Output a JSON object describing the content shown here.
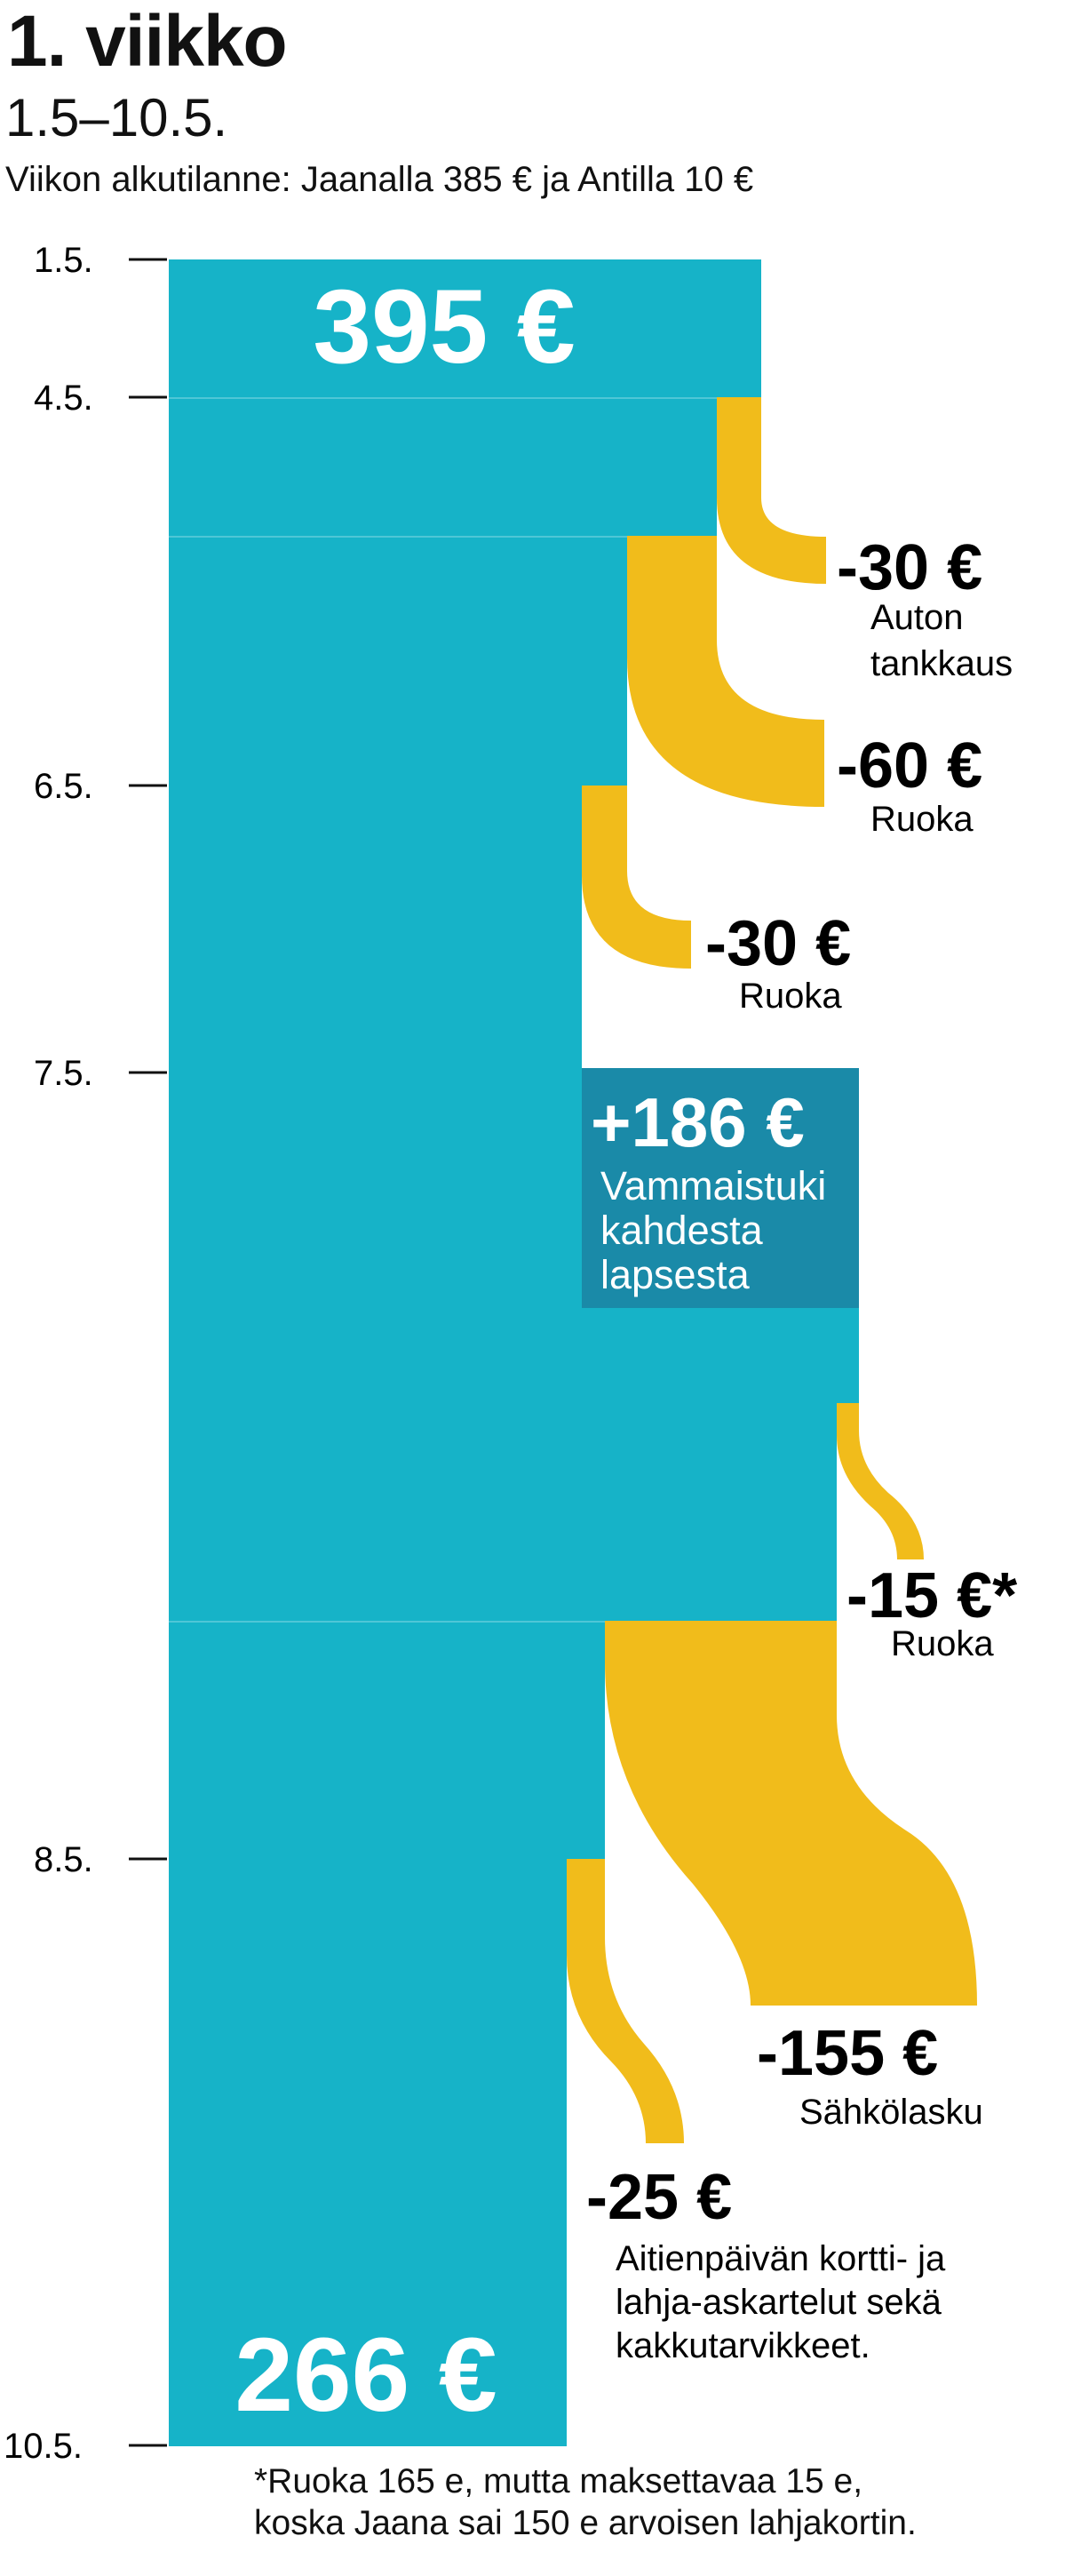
{
  "header": {
    "title": "1. viikko",
    "dates": "1.5–10.5.",
    "intro": "Viikon alkutilanne: Jaanalla 385 € ja Antilla 10 €"
  },
  "colors": {
    "balance": "#16b3c8",
    "income": "#1a8aa8",
    "expense": "#f1bc1b",
    "text": "#111111"
  },
  "axis": {
    "ticks": [
      "1.5.",
      "4.5.",
      "6.5.",
      "7.5.",
      "8.5.",
      "10.5."
    ]
  },
  "balance": {
    "start_label": "395 €",
    "end_label": "266 €",
    "start_value": 395,
    "end_value": 266
  },
  "flows": [
    {
      "kind": "expense",
      "amount_label": "-30 €",
      "desc": [
        "Auton",
        "tankkaus"
      ],
      "value": -30
    },
    {
      "kind": "expense",
      "amount_label": "-60 €",
      "desc": [
        "Ruoka"
      ],
      "value": -60
    },
    {
      "kind": "expense",
      "amount_label": "-30 €",
      "desc": [
        "Ruoka"
      ],
      "value": -30
    },
    {
      "kind": "income",
      "amount_label": "+186 €",
      "desc": [
        "Vammaistuki",
        "kahdesta",
        "lapsesta"
      ],
      "value": 186
    },
    {
      "kind": "expense",
      "amount_label": "-15 €*",
      "desc": [
        "Ruoka"
      ],
      "value": -15
    },
    {
      "kind": "expense",
      "amount_label": "-155 €",
      "desc": [
        "Sähkölasku"
      ],
      "value": -155
    },
    {
      "kind": "expense",
      "amount_label": "-25 €",
      "desc": [
        "Aitienpäivän kortti- ja",
        "lahja-askartelut sekä",
        "kakkutarvikkeet."
      ],
      "value": -25
    }
  ],
  "footnote": [
    "*Ruoka 165 e, mutta maksettavaa 15 e,",
    "koska Jaana sai 150 e arvoisen lahjakortin."
  ]
}
